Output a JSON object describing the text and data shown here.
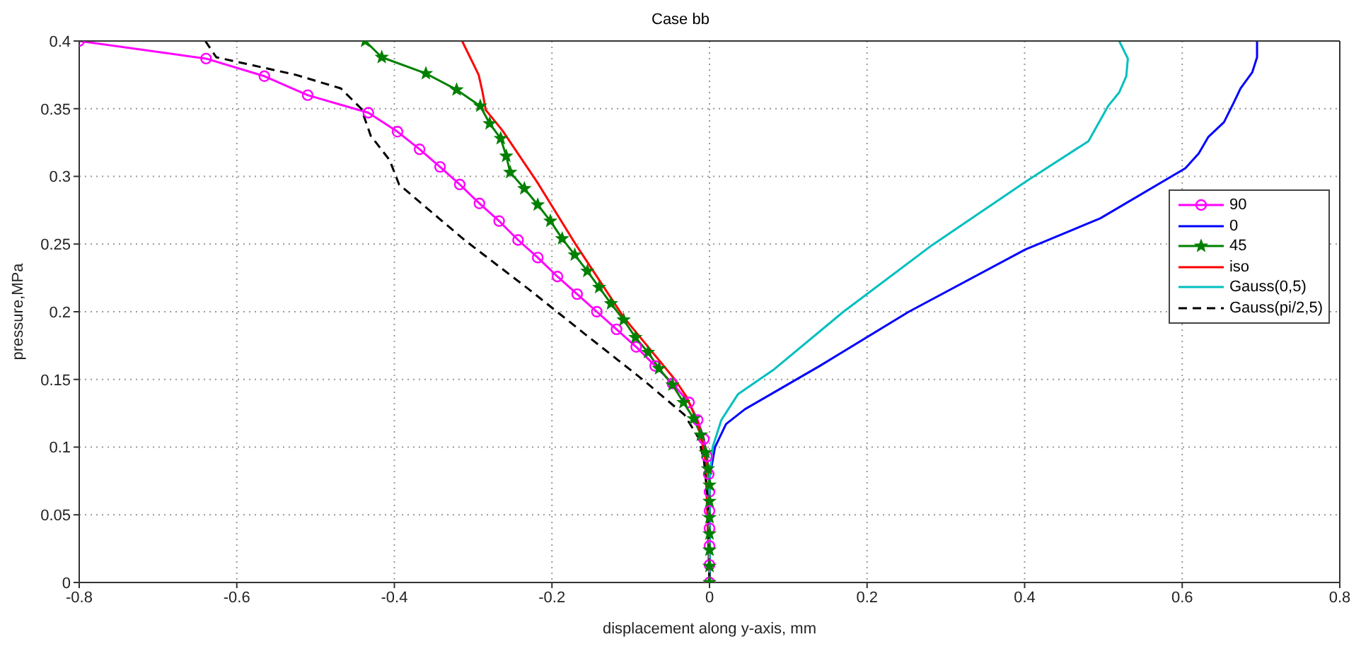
{
  "chart_data": {
    "type": "line",
    "title": "Case bb",
    "xlabel": "displacement along y-axis, mm",
    "ylabel": "pressure,MPa",
    "xlim": [
      -0.8,
      0.8
    ],
    "xticks": [
      -0.8,
      -0.6,
      -0.4,
      -0.2,
      0,
      0.2,
      0.4,
      0.6,
      0.8
    ],
    "ylim": [
      0,
      0.4
    ],
    "yticks": [
      0,
      0.05,
      0.1,
      0.15,
      0.2,
      0.25,
      0.3,
      0.35,
      0.4
    ],
    "grid": true,
    "legend": "right",
    "series": [
      {
        "name": "90",
        "color": "#ff00ff",
        "marker": "circle",
        "line_style": "solid",
        "x": [
          -0.8,
          -0.639,
          -0.565,
          -0.51,
          -0.433,
          -0.396,
          -0.368,
          -0.342,
          -0.317,
          -0.292,
          -0.267,
          -0.243,
          -0.218,
          -0.193,
          -0.168,
          -0.143,
          -0.118,
          -0.093,
          -0.069,
          -0.047,
          -0.026,
          -0.015,
          -0.007,
          -0.003,
          -0.001,
          0,
          0,
          0,
          0,
          0,
          0
        ],
        "values": [
          0.4,
          0.387,
          0.374,
          0.36,
          0.347,
          0.333,
          0.32,
          0.307,
          0.294,
          0.28,
          0.267,
          0.253,
          0.24,
          0.226,
          0.213,
          0.2,
          0.187,
          0.174,
          0.16,
          0.147,
          0.133,
          0.12,
          0.106,
          0.093,
          0.08,
          0.067,
          0.053,
          0.04,
          0.027,
          0.013,
          0
        ]
      },
      {
        "name": "0",
        "color": "#0000ff",
        "marker": "none",
        "line_style": "solid",
        "x": [
          0.695,
          0.695,
          0.689,
          0.674,
          0.665,
          0.653,
          0.633,
          0.621,
          0.604,
          0.496,
          0.401,
          0.253,
          0.14,
          0.045,
          0.021,
          0.007,
          0,
          0
        ],
        "values": [
          0.4,
          0.388,
          0.377,
          0.365,
          0.354,
          0.34,
          0.329,
          0.317,
          0.306,
          0.269,
          0.246,
          0.2,
          0.16,
          0.128,
          0.117,
          0.1,
          0.077,
          0
        ]
      },
      {
        "name": "45",
        "color": "#008000",
        "marker": "star",
        "line_style": "solid",
        "x": [
          -0.437,
          -0.416,
          -0.36,
          -0.321,
          -0.291,
          -0.279,
          -0.265,
          -0.258,
          -0.253,
          -0.235,
          -0.218,
          -0.202,
          -0.187,
          -0.171,
          -0.155,
          -0.14,
          -0.125,
          -0.109,
          -0.094,
          -0.078,
          -0.064,
          -0.047,
          -0.033,
          -0.02,
          -0.011,
          -0.005,
          -0.002,
          0,
          0,
          0,
          0,
          0,
          0,
          0
        ],
        "values": [
          0.4,
          0.388,
          0.376,
          0.364,
          0.352,
          0.339,
          0.328,
          0.315,
          0.303,
          0.291,
          0.279,
          0.267,
          0.254,
          0.242,
          0.23,
          0.218,
          0.206,
          0.194,
          0.181,
          0.17,
          0.158,
          0.146,
          0.133,
          0.121,
          0.109,
          0.096,
          0.084,
          0.072,
          0.06,
          0.048,
          0.036,
          0.024,
          0.012,
          0
        ]
      },
      {
        "name": "iso",
        "color": "#ff0000",
        "marker": "none",
        "line_style": "solid",
        "x": [
          -0.314,
          -0.293,
          -0.288,
          -0.284,
          -0.263,
          -0.219,
          -0.169,
          -0.109,
          -0.044,
          -0.029,
          -0.014,
          -0.005,
          0
        ],
        "values": [
          0.4,
          0.375,
          0.362,
          0.349,
          0.334,
          0.296,
          0.249,
          0.196,
          0.15,
          0.137,
          0.117,
          0.09,
          0
        ]
      },
      {
        "name": "Gauss(0,5)",
        "color": "#00bfbf",
        "marker": "none",
        "line_style": "solid",
        "x": [
          0.52,
          0.531,
          0.529,
          0.52,
          0.506,
          0.481,
          0.401,
          0.282,
          0.17,
          0.081,
          0.036,
          0.015,
          0.004,
          0,
          0
        ],
        "values": [
          0.4,
          0.387,
          0.374,
          0.362,
          0.352,
          0.326,
          0.296,
          0.249,
          0.2,
          0.157,
          0.139,
          0.12,
          0.1,
          0.077,
          0
        ]
      },
      {
        "name": "Gauss(pi/2,5)",
        "color": "#000000",
        "marker": "none",
        "line_style": "dashed",
        "x": [
          -0.64,
          -0.626,
          -0.525,
          -0.468,
          -0.442,
          -0.43,
          -0.406,
          -0.394,
          -0.311,
          -0.228,
          -0.157,
          -0.085,
          -0.032,
          -0.014,
          -0.007,
          -0.002,
          0
        ],
        "values": [
          0.4,
          0.388,
          0.375,
          0.365,
          0.35,
          0.33,
          0.312,
          0.294,
          0.253,
          0.216,
          0.183,
          0.15,
          0.124,
          0.107,
          0.09,
          0.06,
          0
        ]
      }
    ]
  }
}
